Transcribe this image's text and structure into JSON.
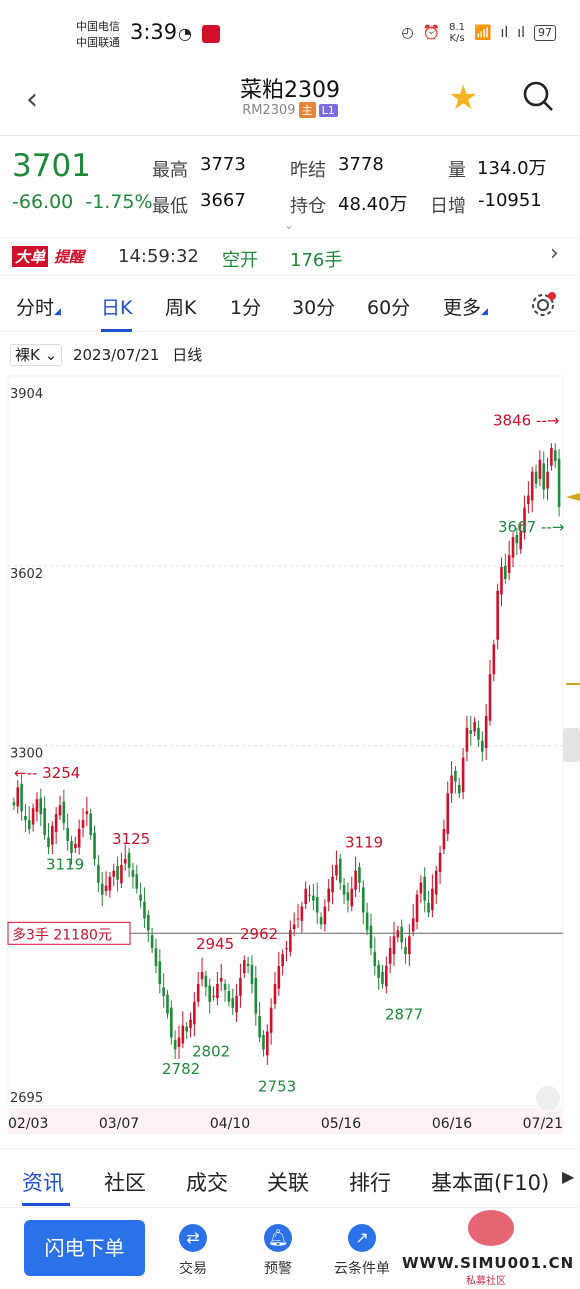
{
  "status_bar": {
    "carrier1": "中国电信",
    "carrier2": "中国联通",
    "time": "3:39",
    "net_speed": "8.1",
    "net_unit": "K/s",
    "battery": "97"
  },
  "header": {
    "title": "菜粕2309",
    "code": "RM2309",
    "tag_main": "主",
    "tag_l1": "L1"
  },
  "quote": {
    "last": "3701",
    "change": "-66.00",
    "change_pct": "-1.75%",
    "high_label": "最高",
    "high": "3773",
    "low_label": "最低",
    "low": "3667",
    "prev_label": "昨结",
    "prev": "3778",
    "oi_label": "持仓",
    "oi": "48.40万",
    "vol_label": "量",
    "vol": "134.0万",
    "day_inc_label": "日增",
    "day_inc": "-10951"
  },
  "alert": {
    "badge1": "大单",
    "badge2": "提醒",
    "time": "14:59:32",
    "action": "空开",
    "qty": "176手"
  },
  "period_tabs": [
    "分时",
    "日K",
    "周K",
    "1分",
    "30分",
    "60分",
    "更多"
  ],
  "active_period": 1,
  "chart_info": {
    "mode": "裸K",
    "date": "2023/07/21",
    "kind": "日线"
  },
  "position_line": {
    "label": "多3手  21180元",
    "price": 2985
  },
  "colors": {
    "up": "#d0102b",
    "down": "#1e8a3a",
    "accent": "#1d4fd1"
  },
  "chart_data": {
    "type": "candlestick",
    "ylim": [
      2695,
      3904
    ],
    "y_ticks": [
      3904,
      3602,
      3300,
      2695
    ],
    "x_ticks": [
      "02/03",
      "03/07",
      "04/10",
      "05/16",
      "06/16",
      "07/21"
    ],
    "annotations": [
      {
        "text": "3254",
        "value": 3254,
        "arrow": "left"
      },
      {
        "text": "3119",
        "value": 3119
      },
      {
        "text": "3125",
        "value": 3125
      },
      {
        "text": "2782",
        "value": 2782
      },
      {
        "text": "2802",
        "value": 2802
      },
      {
        "text": "2945",
        "value": 2945
      },
      {
        "text": "2962",
        "value": 2962
      },
      {
        "text": "2753",
        "value": 2753
      },
      {
        "text": "3119",
        "value": 3119
      },
      {
        "text": "2877",
        "value": 2877
      },
      {
        "text": "3846",
        "value": 3846,
        "arrow": "right"
      },
      {
        "text": "3667",
        "value": 3667,
        "arrow": "right"
      }
    ],
    "closes": [
      3200,
      3230,
      3190,
      3175,
      3160,
      3195,
      3210,
      3185,
      3150,
      3130,
      3165,
      3185,
      3200,
      3170,
      3140,
      3120,
      3135,
      3160,
      3175,
      3190,
      3150,
      3110,
      3070,
      3050,
      3065,
      3080,
      3090,
      3075,
      3100,
      3110,
      3095,
      3080,
      3060,
      3040,
      3010,
      2990,
      2960,
      2930,
      2900,
      2880,
      2850,
      2810,
      2790,
      2810,
      2830,
      2820,
      2840,
      2870,
      2900,
      2920,
      2895,
      2870,
      2880,
      2900,
      2910,
      2890,
      2870,
      2860,
      2880,
      2910,
      2940,
      2930,
      2900,
      2850,
      2810,
      2790,
      2820,
      2860,
      2900,
      2930,
      2950,
      2960,
      2990,
      3000,
      3010,
      3030,
      3060,
      3050,
      3040,
      3020,
      3000,
      3030,
      3060,
      3080,
      3100,
      3070,
      3050,
      3040,
      3060,
      3090,
      3070,
      3020,
      2990,
      2960,
      2930,
      2910,
      2900,
      2930,
      2960,
      2980,
      2990,
      2970,
      2950,
      2980,
      3010,
      3050,
      3070,
      3040,
      3020,
      3060,
      3090,
      3120,
      3160,
      3220,
      3250,
      3240,
      3220,
      3280,
      3330,
      3320,
      3340,
      3310,
      3290,
      3350,
      3420,
      3470,
      3560,
      3600,
      3580,
      3620,
      3650,
      3640,
      3660,
      3700,
      3720,
      3760,
      3740,
      3780,
      3730,
      3760,
      3800,
      3778,
      3701
    ]
  },
  "bottom_tabs": [
    "资讯",
    "社区",
    "成交",
    "关联",
    "排行",
    "基本面(F10)"
  ],
  "footer": {
    "flash_order": "闪电下单",
    "items": [
      "交易",
      "预警",
      "云条件单"
    ],
    "watermark": "WWW.SIMU001.CN",
    "watermark_sub": "私募社区"
  }
}
